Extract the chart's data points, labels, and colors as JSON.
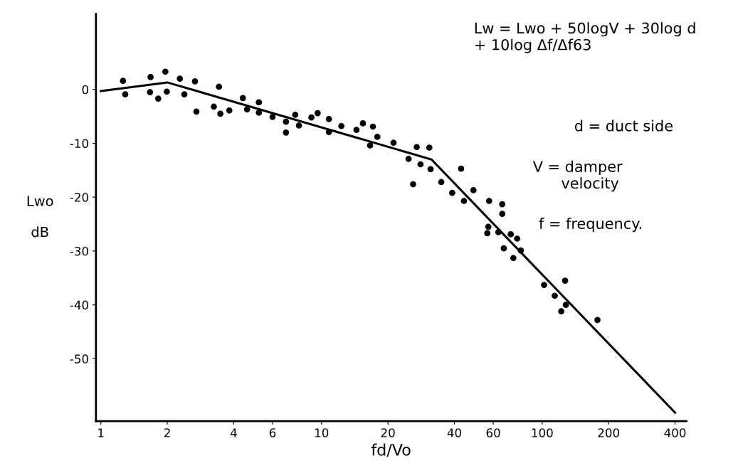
{
  "chart_data": {
    "type": "scatter",
    "xlabel": "fd/Vo",
    "ylabel": "Lwo\n\ndB",
    "log": "x",
    "grid": false,
    "xlim": [
      0.95,
      450
    ],
    "ylim": [
      -61.6,
      14
    ],
    "xticks": [
      1,
      2,
      4,
      6,
      10,
      20,
      40,
      60,
      100,
      200,
      400
    ],
    "yticks": [
      0,
      -10,
      -20,
      -30,
      -40,
      -50
    ],
    "annotations": [
      "Lw = Lwo + 50logV + 30log d\n+ 10log Δf/Δf63",
      "d = duct side",
      "V = damper\n      velocity",
      "f = frequency."
    ],
    "series": [
      {
        "color": "#000000",
        "marker": "circle",
        "x": [
          1.26,
          1.29,
          1.68,
          1.67,
          1.82,
          1.96,
          1.99,
          2.28,
          2.39,
          2.67,
          2.71,
          3.25,
          3.43,
          3.48,
          3.82,
          4.4,
          4.6,
          5.2,
          5.2,
          6.0,
          6.9,
          6.9,
          7.6,
          7.9,
          9.0,
          9.6,
          10.8,
          10.8,
          12.3,
          14.4,
          15.4,
          17.1,
          17.9,
          16.6,
          21.2,
          27.0,
          30.8,
          24.8,
          28.1,
          31.2,
          26.0,
          34.9,
          39.1,
          42.9,
          48.8,
          44.2,
          57.5,
          65.9,
          65.9,
          57,
          56.4,
          63.3,
          72,
          67,
          77,
          80,
          74,
          102,
          127,
          114,
          128,
          122,
          178
        ],
        "values": [
          1.6,
          -0.9,
          2.3,
          -0.5,
          -1.7,
          3.3,
          -0.4,
          2.0,
          -0.9,
          1.5,
          -4.1,
          -3.2,
          0.5,
          -4.5,
          -3.9,
          -1.6,
          -3.7,
          -2.4,
          -4.3,
          -5.1,
          -6.0,
          -8.0,
          -4.7,
          -6.7,
          -5.2,
          -4.4,
          -5.5,
          -7.9,
          -6.8,
          -7.5,
          -6.3,
          -6.9,
          -8.8,
          -10.4,
          -9.9,
          -10.7,
          -10.8,
          -12.9,
          -13.9,
          -14.8,
          -17.6,
          -17.2,
          -19.2,
          -14.7,
          -18.7,
          -20.7,
          -20.7,
          -21.3,
          -23.1,
          -25.5,
          -26.7,
          -26.5,
          -26.9,
          -29.5,
          -27.7,
          -29.9,
          -31.3,
          -36.3,
          -35.5,
          -38.3,
          -40,
          -41.2,
          -42.8
        ]
      },
      {
        "type": "line",
        "color": "#000000",
        "marker": "none",
        "line_style": "solid",
        "x": [
          1,
          2,
          31.5,
          400
        ],
        "values": [
          -0.3,
          1.3,
          -13,
          -60
        ]
      }
    ]
  }
}
